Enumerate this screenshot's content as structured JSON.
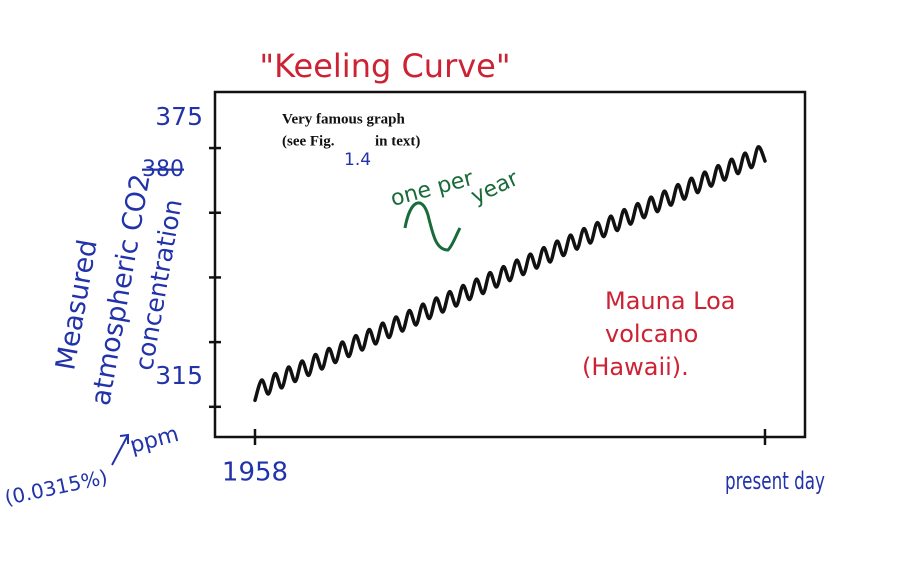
{
  "chart_data": {
    "type": "line",
    "title": "\"Keeling Curve\"",
    "ylabel": [
      "Measured",
      "atmospheric CO2",
      "concentration"
    ],
    "ylim": [
      308,
      388
    ],
    "yticks": [
      315,
      {
        "value": 330,
        "label": null
      },
      {
        "value": 345,
        "label": null
      },
      {
        "value": 360,
        "label": null
      },
      375
    ],
    "ytick_notes": {
      "crossed_out": "380",
      "unit": "ppm",
      "percent": "(0.0315%)"
    },
    "categories": [
      "1958",
      null,
      null,
      null,
      null,
      null,
      null,
      null,
      null,
      null,
      null,
      null,
      null,
      null,
      null,
      null,
      null,
      null,
      null,
      null,
      null,
      null,
      null,
      null,
      null,
      null,
      null,
      null,
      null,
      null,
      null,
      null,
      null,
      null,
      null,
      null,
      null,
      null,
      null,
      null,
      null,
      null,
      null,
      null,
      null,
      null,
      null,
      null,
      null,
      null,
      null,
      null,
      null,
      null,
      null,
      null,
      null,
      null,
      null,
      null,
      null,
      null,
      null,
      null,
      null,
      null,
      null,
      null,
      null,
      null,
      null,
      null,
      null,
      null,
      null,
      null,
      "present day"
    ],
    "series": [
      {
        "name": null,
        "color": "#111111",
        "values": [
          316.5,
          321.2,
          318.0,
          322.7,
          319.4,
          324.2,
          320.9,
          325.6,
          322.3,
          327.1,
          323.8,
          328.5,
          325.3,
          330.0,
          326.7,
          331.5,
          328.2,
          332.9,
          329.6,
          334.4,
          331.1,
          335.8,
          332.6,
          337.3,
          334.0,
          338.8,
          335.5,
          340.2,
          337.0,
          341.7,
          338.4,
          343.1,
          339.9,
          344.6,
          341.3,
          346.1,
          342.8,
          347.5,
          344.3,
          349.0,
          345.7,
          350.4,
          347.2,
          351.9,
          348.6,
          353.4,
          350.1,
          354.8,
          351.6,
          356.3,
          353.0,
          357.7,
          354.5,
          359.2,
          355.9,
          360.7,
          357.4,
          362.1,
          358.9,
          363.6,
          360.3,
          365.0,
          361.8,
          366.5,
          363.2,
          368.0,
          364.7,
          369.4,
          366.2,
          370.9,
          367.6,
          372.4,
          369.1,
          373.8,
          370.5,
          375.3,
          372.0
        ]
      }
    ],
    "annotations": {
      "note": [
        "Very famous graph",
        "(see Fig.",
        "in text)"
      ],
      "fig_number": "1.4",
      "cycle": [
        "one per",
        "year"
      ],
      "location": [
        "Mauna Loa",
        "volcano",
        "(Hawaii)."
      ]
    }
  }
}
